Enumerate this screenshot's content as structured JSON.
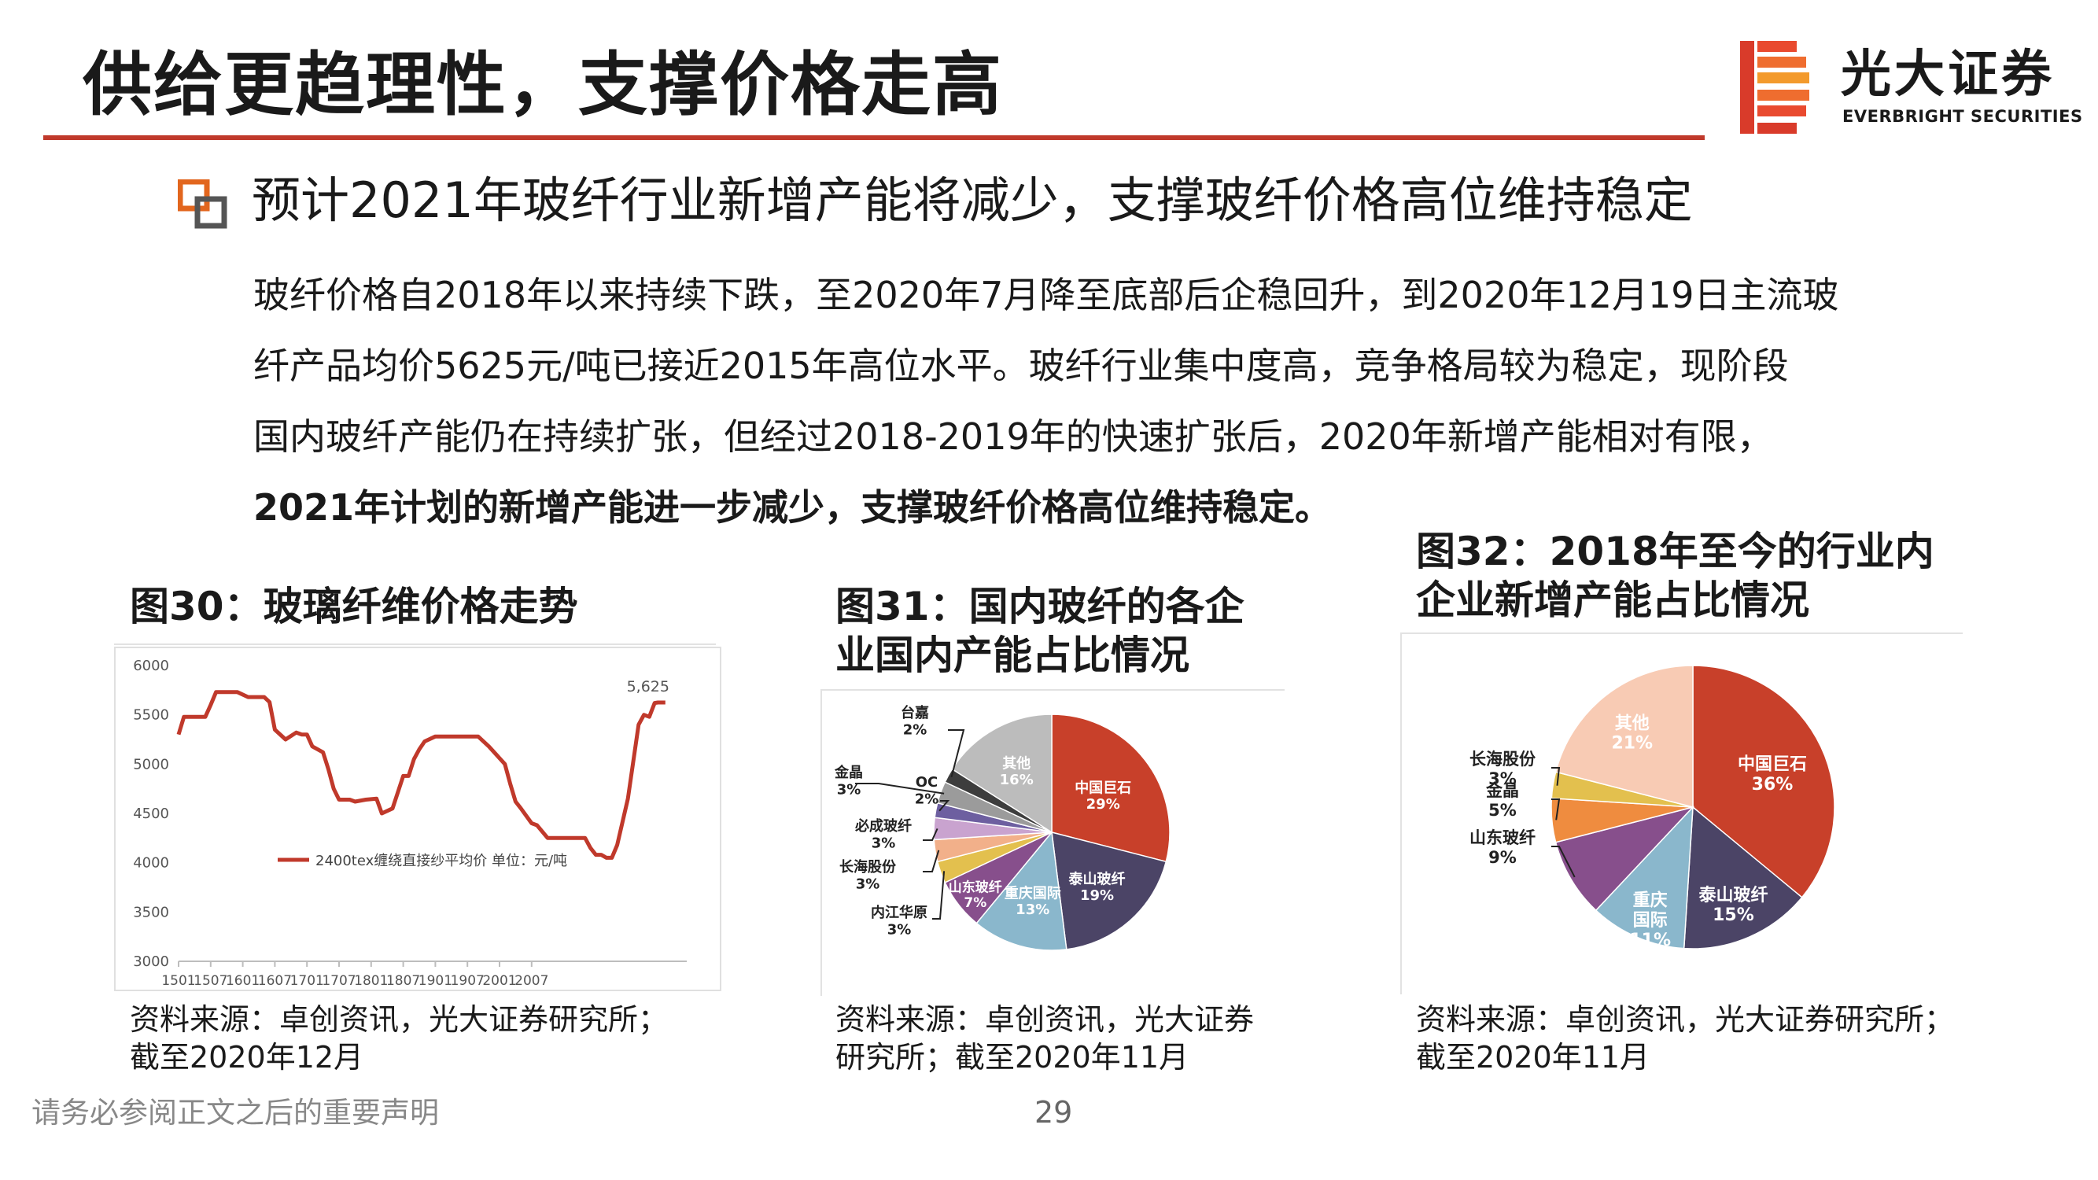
{
  "slide_title": "供给更趋理性，支撑价格走高",
  "brand": {
    "name_cn": "光大证券",
    "name_en": "EVERBRIGHT SECURITIES",
    "accent": "#c0392b"
  },
  "heading": "预计2021年玻纤行业新增产能将减少，支撑玻纤价格高位维持稳定",
  "paragraph_lines": [
    "玻纤价格自2018年以来持续下跌，至2020年7月降至底部后企稳回升，到2020年12月19日主流玻",
    "纤产品均价5625元/吨已接近2015年高位水平。玻纤行业集中度高，竞争格局较为稳定，现阶段",
    "国内玻纤产能仍在持续扩张，但经过2018-2019年的快速扩张后，2020年新增产能相对有限，"
  ],
  "paragraph_bold_line": "2021年计划的新增产能进一步减少，支撑玻纤价格高位维持稳定。",
  "fig30": {
    "title": "图30：玻璃纤维价格走势",
    "source_line1": "资料来源：卓创资讯，光大证券研究所；",
    "source_line2": "截至2020年12月"
  },
  "fig31": {
    "title_line1": "图31：国内玻纤的各企",
    "title_line2": "业国内产能占比情况",
    "source_line1": "资料来源：卓创资讯，光大证券",
    "source_line2": "研究所；截至2020年11月"
  },
  "fig32": {
    "title_line1": "图32：2018年至今的行业内",
    "title_line2": "企业新增产能占比情况",
    "source_line1": "资料来源：卓创资讯，光大证券研究所；",
    "source_line2": "截至2020年11月"
  },
  "footer_note": "请务必参阅正文之后的重要声明",
  "page_number": "29",
  "chart_data": [
    {
      "type": "line",
      "legend": "2400tex缠绕直接纱平均价 单位：元/吨",
      "line_color": "#c0392b",
      "ylim": [
        3000,
        6000
      ],
      "yticks": [
        "6000",
        "5500",
        "5000",
        "4500",
        "4000",
        "3500",
        "3000"
      ],
      "xticks": [
        "1501",
        "1507",
        "1601",
        "1607",
        "1701",
        "1707",
        "1801",
        "1807",
        "1901",
        "1907",
        "2001",
        "2007"
      ],
      "annotation": "5,625",
      "x_months_from_2015_01": [
        0,
        1,
        3,
        5,
        6,
        7,
        9,
        11,
        13,
        14,
        16,
        17,
        18,
        20,
        22,
        23,
        24,
        25,
        27,
        28,
        29,
        30,
        31,
        32,
        33,
        35,
        37,
        38,
        40,
        42,
        43,
        44,
        45,
        46,
        48,
        50,
        53,
        56,
        58,
        61,
        62,
        63,
        64,
        66,
        67,
        69,
        70,
        72,
        74,
        76,
        77,
        78,
        79,
        80,
        81,
        82,
        84,
        86,
        87,
        88,
        88.5,
        89,
        89.6,
        90,
        90.5,
        91
      ],
      "values": [
        5300,
        5480,
        5480,
        5480,
        5600,
        5730,
        5730,
        5730,
        5680,
        5680,
        5680,
        5630,
        5350,
        5250,
        5320,
        5300,
        5300,
        5180,
        5120,
        4950,
        4750,
        4640,
        4640,
        4640,
        4620,
        4640,
        4650,
        4500,
        4550,
        4880,
        4880,
        5050,
        5150,
        5230,
        5280,
        5280,
        5280,
        5280,
        5180,
        5000,
        4800,
        4620,
        4550,
        4400,
        4380,
        4250,
        4250,
        4250,
        4250,
        4250,
        4150,
        4080,
        4080,
        4050,
        4050,
        4180,
        4650,
        5400,
        5500,
        5480,
        5550,
        5620,
        5625,
        5625,
        5625,
        5625
      ]
    },
    {
      "type": "pie",
      "labels": [
        "中国巨石",
        "泰山玻纤",
        "重庆国际",
        "山东玻纤",
        "内江华原",
        "长海股份",
        "必成玻纤",
        "OC",
        "金晶",
        "台嘉",
        "其他"
      ],
      "values": [
        29,
        19,
        13,
        7,
        3,
        3,
        3,
        2,
        3,
        2,
        16
      ],
      "percent_labels": [
        "29%",
        "19%",
        "13%",
        "7%",
        "3%",
        "3%",
        "3%",
        "2%",
        "3%",
        "2%",
        "16%"
      ],
      "colors": [
        "#c8402a",
        "#4b4466",
        "#8ab7cc",
        "#874f8c",
        "#e3c04e",
        "#f2b08a",
        "#c9a3cf",
        "#6d5fa0",
        "#9b9b9b",
        "#3d3d3d",
        "#bcbcbc"
      ]
    },
    {
      "type": "pie",
      "labels": [
        "中国巨石",
        "泰山玻纤",
        "重庆国际",
        "山东玻纤",
        "金晶",
        "长海股份",
        "其他"
      ],
      "values": [
        36,
        15,
        11,
        9,
        5,
        3,
        21
      ],
      "percent_labels": [
        "36%",
        "15%",
        "11%",
        "9%",
        "5%",
        "3%",
        "21%"
      ],
      "colors": [
        "#c8402a",
        "#4b4466",
        "#8ab7cc",
        "#874f8c",
        "#ef8c3f",
        "#e3c04e",
        "#f8cbb4"
      ]
    }
  ]
}
